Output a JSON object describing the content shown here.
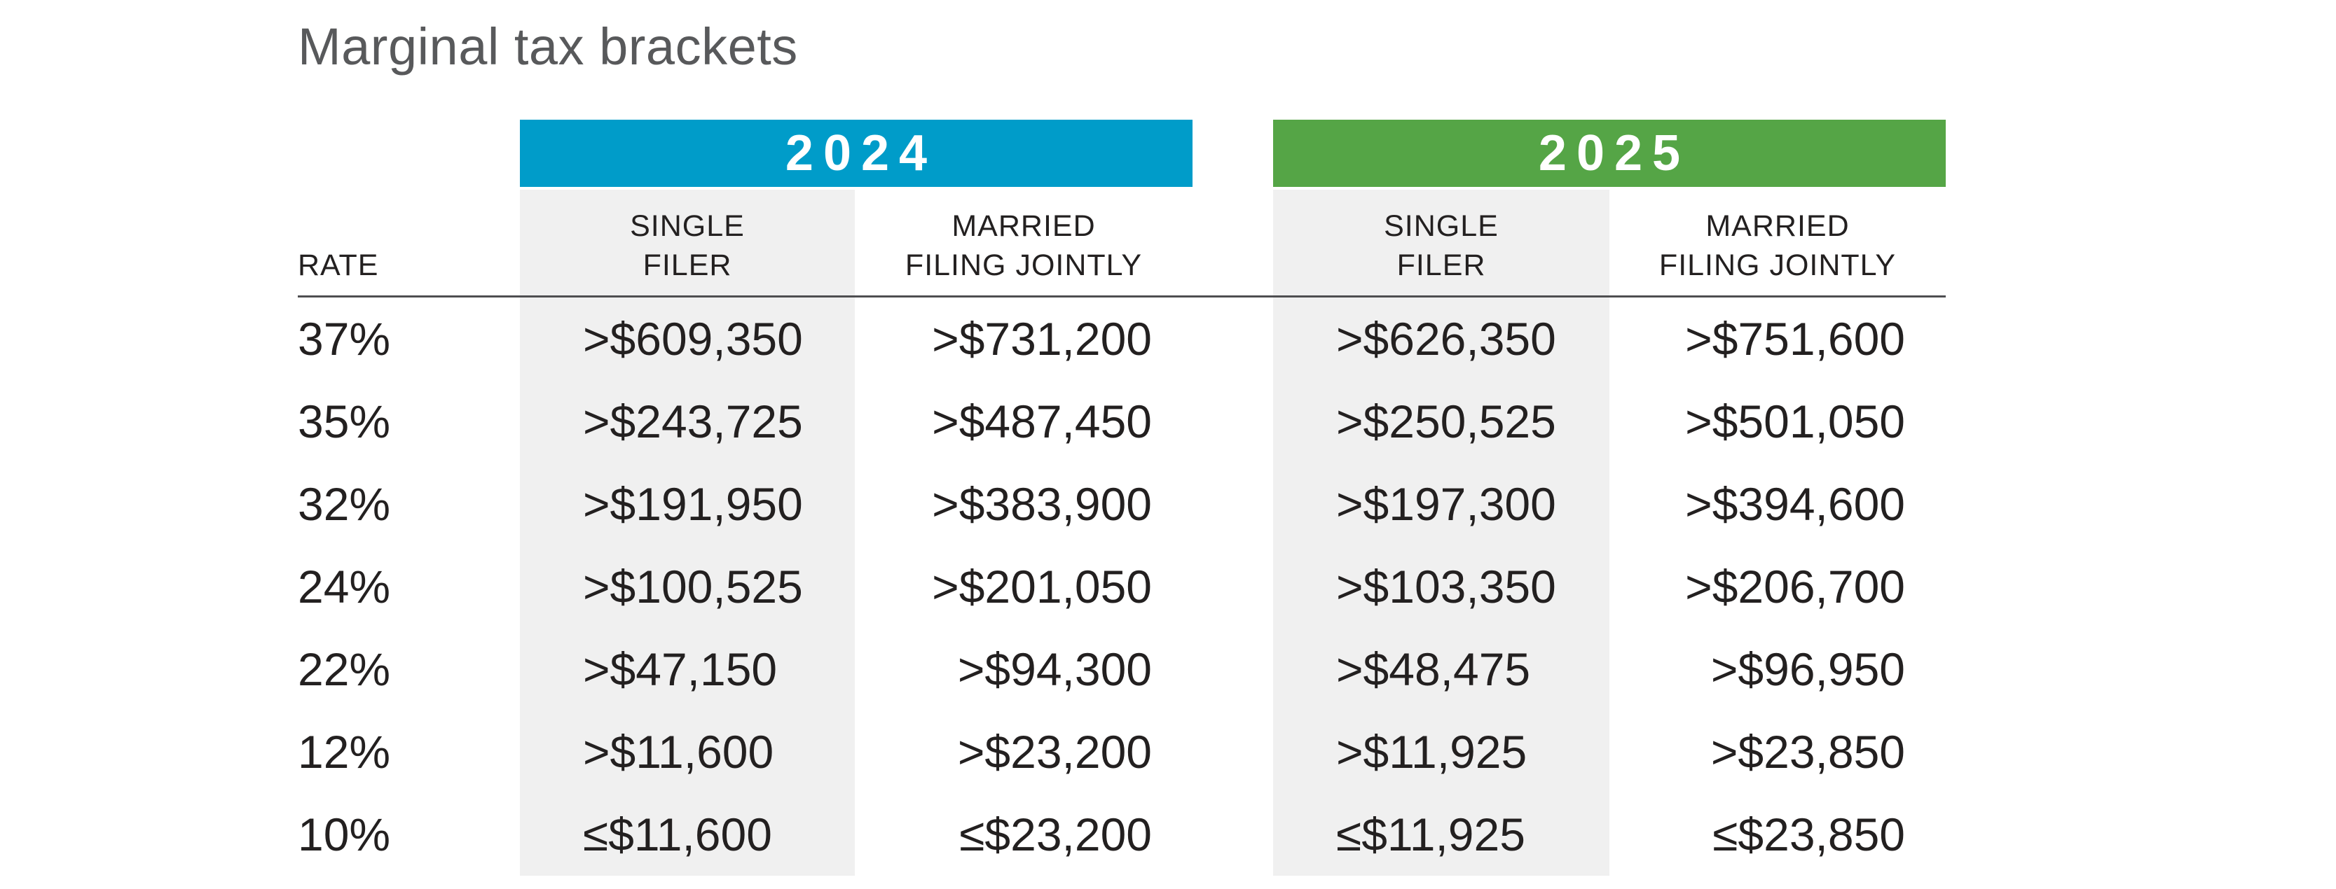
{
  "title": "Marginal tax brackets",
  "colors": {
    "year_2024_bar": "#009CC9",
    "year_2025_bar": "#55A546",
    "column_shade": "#F0F0F0",
    "header_rule": "#4E4E50",
    "body_text": "#232020",
    "title_text": "#58595B",
    "year_text": "#FFFFFF"
  },
  "table": {
    "rate_header": "RATE",
    "year_groups": [
      {
        "year": "2024",
        "single_line1": "SINGLE",
        "single_line2": "FILER",
        "married_line1": "MARRIED",
        "married_line2": "FILING JOINTLY"
      },
      {
        "year": "2025",
        "single_line1": "SINGLE",
        "single_line2": "FILER",
        "married_line1": "MARRIED",
        "married_line2": "FILING JOINTLY"
      }
    ],
    "rows": [
      {
        "rate": "37%",
        "y2024_single": ">$609,350",
        "y2024_married": ">$731,200",
        "y2025_single": ">$626,350",
        "y2025_married": ">$751,600"
      },
      {
        "rate": "35%",
        "y2024_single": ">$243,725",
        "y2024_married": ">$487,450",
        "y2025_single": ">$250,525",
        "y2025_married": ">$501,050"
      },
      {
        "rate": "32%",
        "y2024_single": ">$191,950",
        "y2024_married": ">$383,900",
        "y2025_single": ">$197,300",
        "y2025_married": ">$394,600"
      },
      {
        "rate": "24%",
        "y2024_single": ">$100,525",
        "y2024_married": ">$201,050",
        "y2025_single": ">$103,350",
        "y2025_married": ">$206,700"
      },
      {
        "rate": "22%",
        "y2024_single": ">$47,150",
        "y2024_married": ">$94,300",
        "y2025_single": ">$48,475",
        "y2025_married": ">$96,950"
      },
      {
        "rate": "12%",
        "y2024_single": ">$11,600",
        "y2024_married": ">$23,200",
        "y2025_single": ">$11,925",
        "y2025_married": ">$23,850"
      },
      {
        "rate": "10%",
        "y2024_single": "≤$11,600",
        "y2024_married": "≤$23,200",
        "y2025_single": "≤$11,925",
        "y2025_married": "≤$23,850"
      }
    ]
  },
  "chart_data": {
    "type": "table",
    "title": "Marginal tax brackets",
    "columns": [
      "RATE",
      "2024 SINGLE FILER",
      "2024 MARRIED FILING JOINTLY",
      "2025 SINGLE FILER",
      "2025 MARRIED FILING JOINTLY"
    ],
    "rows": [
      [
        "37%",
        ">$609,350",
        ">$731,200",
        ">$626,350",
        ">$751,600"
      ],
      [
        "35%",
        ">$243,725",
        ">$487,450",
        ">$250,525",
        ">$501,050"
      ],
      [
        "32%",
        ">$191,950",
        ">$383,900",
        ">$197,300",
        ">$394,600"
      ],
      [
        "24%",
        ">$100,525",
        ">$201,050",
        ">$103,350",
        ">$206,700"
      ],
      [
        "22%",
        ">$47,150",
        ">$94,300",
        ">$48,475",
        ">$96,950"
      ],
      [
        "12%",
        ">$11,600",
        ">$23,200",
        ">$11,925",
        ">$23,850"
      ],
      [
        "10%",
        "≤$11,600",
        "≤$23,200",
        "≤$11,925",
        "≤$23,850"
      ]
    ],
    "legend_position": "none",
    "grid": false
  }
}
